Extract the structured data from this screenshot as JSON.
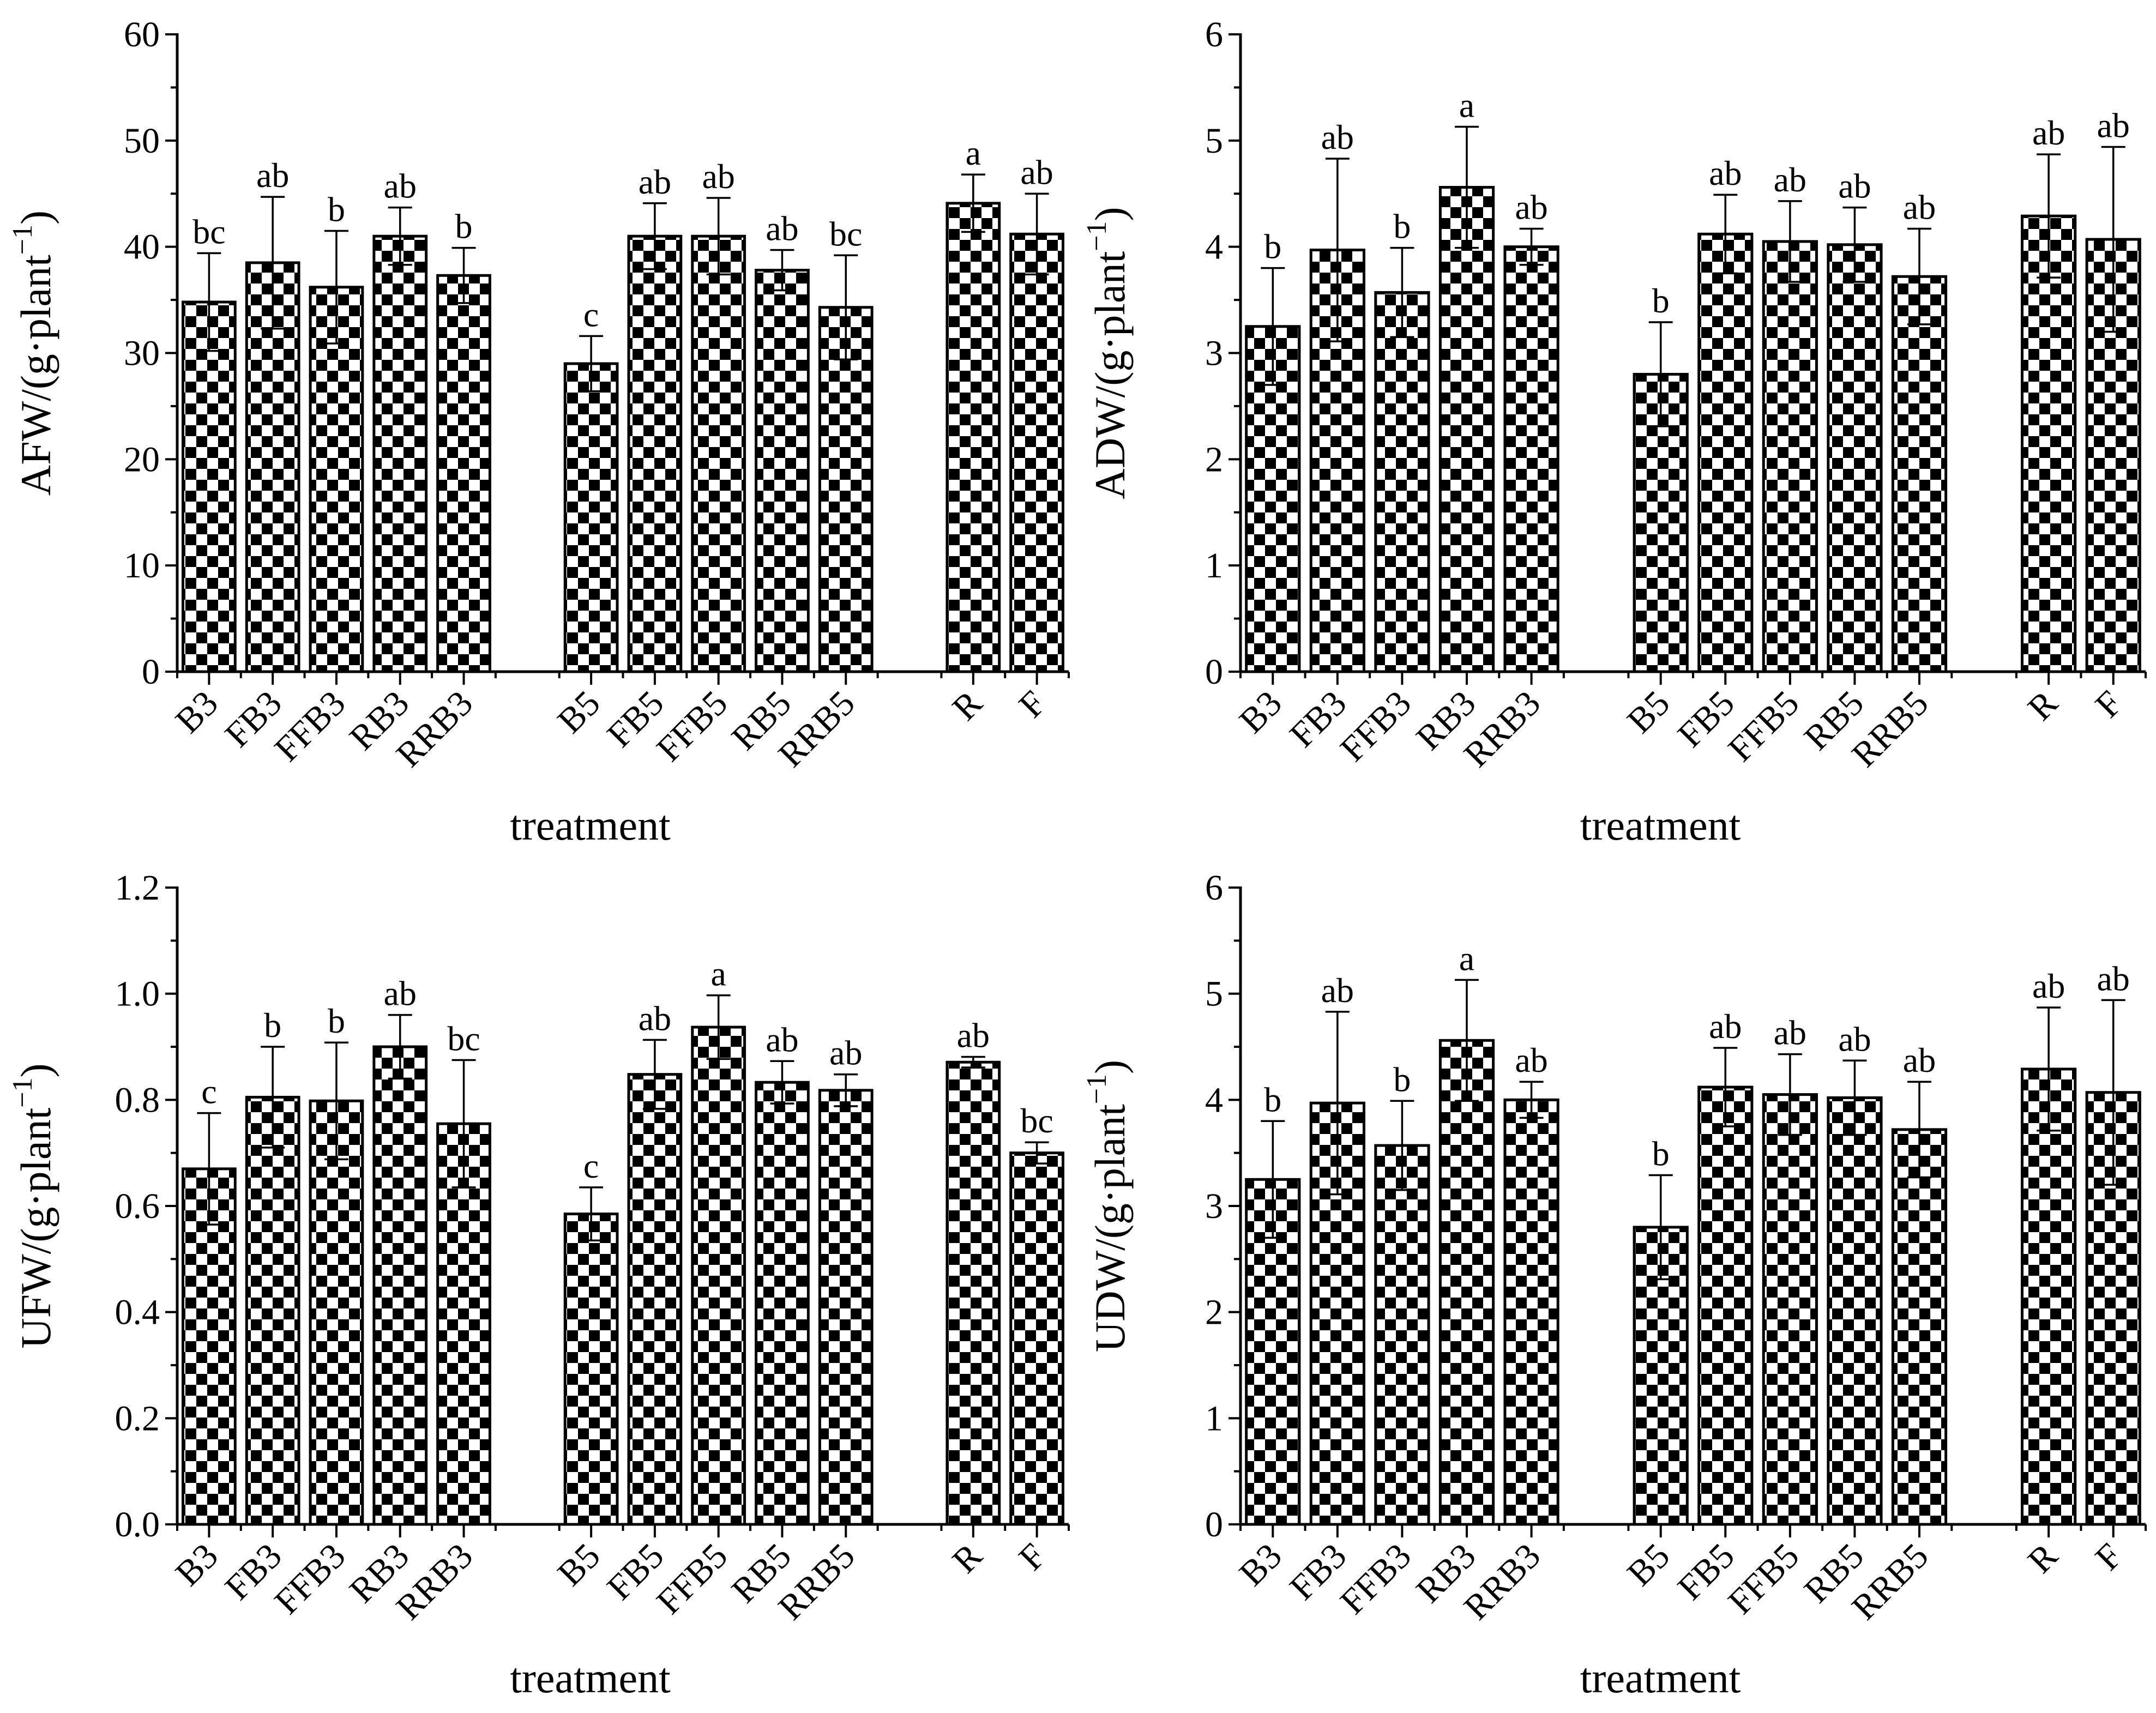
{
  "chart_data": [
    {
      "type": "bar",
      "ylabel": "AFW/(g·plant⁻¹)",
      "xlabel": "treatment",
      "ylim": [
        0,
        60
      ],
      "yticks": [
        0,
        10,
        20,
        30,
        40,
        50,
        60
      ],
      "categories": [
        "B3",
        "FB3",
        "FFB3",
        "RB3",
        "RRB3",
        "B5",
        "FB5",
        "FFB5",
        "RB5",
        "RRB5",
        "R",
        "F"
      ],
      "values": [
        34.8,
        38.5,
        36.2,
        41.0,
        37.3,
        29.0,
        41.0,
        41.0,
        37.8,
        34.3,
        44.1,
        41.2
      ],
      "errors": [
        4.6,
        6.2,
        5.3,
        2.7,
        2.6,
        2.6,
        3.1,
        3.6,
        1.9,
        4.9,
        2.7,
        3.8
      ],
      "significance": [
        "bc",
        "ab",
        "b",
        "ab",
        "b",
        "c",
        "ab",
        "ab",
        "ab",
        "bc",
        "a",
        "ab"
      ],
      "grid": false,
      "pattern": "checkerboard"
    },
    {
      "type": "bar",
      "ylabel": "ADW/(g·plant⁻¹)",
      "xlabel": "treatment",
      "ylim": [
        0,
        6
      ],
      "yticks": [
        0,
        1,
        2,
        3,
        4,
        5,
        6
      ],
      "categories": [
        "B3",
        "FB3",
        "FFB3",
        "RB3",
        "RRB3",
        "B5",
        "FB5",
        "FFB5",
        "RB5",
        "RRB5",
        "R",
        "F"
      ],
      "values": [
        3.25,
        3.97,
        3.57,
        4.56,
        4.0,
        2.8,
        4.12,
        4.05,
        4.02,
        3.72,
        4.29,
        4.07
      ],
      "errors": [
        0.55,
        0.86,
        0.42,
        0.57,
        0.17,
        0.49,
        0.37,
        0.38,
        0.35,
        0.45,
        0.58,
        0.87
      ],
      "significance": [
        "b",
        "ab",
        "b",
        "a",
        "ab",
        "b",
        "ab",
        "ab",
        "ab",
        "ab",
        "ab",
        "ab"
      ],
      "grid": false,
      "pattern": "checkerboard"
    },
    {
      "type": "bar",
      "ylabel": "UFW/(g·plant⁻¹)",
      "xlabel": "treatment",
      "ylim": [
        0,
        1.2
      ],
      "yticks": [
        "0.0",
        "0.2",
        "0.4",
        "0.6",
        "0.8",
        "1.0",
        "1.2"
      ],
      "categories": [
        "B3",
        "FB3",
        "FFB3",
        "RB3",
        "RRB3",
        "B5",
        "FB5",
        "FFB5",
        "RB5",
        "RRB5",
        "R",
        "F"
      ],
      "values": [
        0.67,
        0.805,
        0.798,
        0.9,
        0.755,
        0.585,
        0.848,
        0.937,
        0.833,
        0.818,
        0.871,
        0.7
      ],
      "errors": [
        0.105,
        0.095,
        0.11,
        0.06,
        0.12,
        0.05,
        0.065,
        0.06,
        0.04,
        0.03,
        0.01,
        0.02
      ],
      "significance": [
        "c",
        "b",
        "b",
        "ab",
        "bc",
        "c",
        "ab",
        "a",
        "ab",
        "ab",
        "ab",
        "bc"
      ],
      "grid": false,
      "pattern": "checkerboard"
    },
    {
      "type": "bar",
      "ylabel": "UDW/(g·plant⁻¹)",
      "xlabel": "treatment",
      "ylim": [
        0,
        6
      ],
      "yticks": [
        0,
        1,
        2,
        3,
        4,
        5,
        6
      ],
      "categories": [
        "B3",
        "FB3",
        "FFB3",
        "RB3",
        "RRB3",
        "B5",
        "FB5",
        "FFB5",
        "RB5",
        "RRB5",
        "R",
        "F"
      ],
      "values": [
        3.25,
        3.97,
        3.57,
        4.56,
        4.0,
        2.8,
        4.12,
        4.05,
        4.02,
        3.72,
        4.29,
        4.07
      ],
      "errors": [
        0.55,
        0.86,
        0.42,
        0.57,
        0.17,
        0.49,
        0.37,
        0.38,
        0.35,
        0.45,
        0.58,
        0.87
      ],
      "significance": [
        "b",
        "ab",
        "b",
        "a",
        "ab",
        "b",
        "ab",
        "ab",
        "ab",
        "ab",
        "ab",
        "ab"
      ],
      "grid": false,
      "pattern": "checkerboard"
    }
  ]
}
